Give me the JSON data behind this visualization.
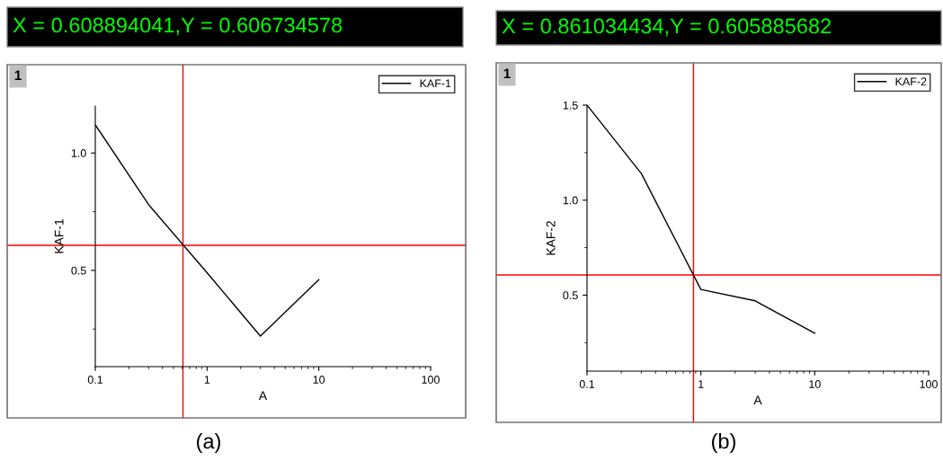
{
  "chart_data": [
    {
      "type": "line",
      "title": "X = 0.608894041,Y = 0.606734578",
      "xlabel": "A",
      "ylabel": "KAF-1",
      "log": "x",
      "x": [
        0.1,
        0.3,
        1,
        3,
        10
      ],
      "series": [
        {
          "name": "KAF-1",
          "color": "#000000",
          "values": [
            1.12,
            0.78,
            0.49,
            0.22,
            0.46
          ]
        }
      ],
      "xlim": [
        0.1,
        100
      ],
      "xticks": [
        0.1,
        1,
        10,
        100
      ],
      "ylim": [
        0.09,
        1.2
      ],
      "yticks": [
        {
          "value": 0.5,
          "label": "0.5"
        },
        {
          "value": 1.0,
          "label": "1.0"
        }
      ],
      "ref_lines": [
        {
          "axis": "x",
          "value": 0.608894041,
          "color": "#ff0000"
        },
        {
          "axis": "y",
          "value": 0.606734578,
          "color": "#ff0000"
        }
      ],
      "annotations": [
        "1",
        "(a)"
      ],
      "legend": "top right",
      "grid": false,
      "marker": "none",
      "line_style": "solid"
    },
    {
      "type": "line",
      "title": "X = 0.861034434,Y = 0.605885682",
      "xlabel": "A",
      "ylabel": "KAF-2",
      "log": "x",
      "x": [
        0.1,
        0.3,
        1,
        3,
        10
      ],
      "series": [
        {
          "name": "KAF-2",
          "color": "#000000",
          "values": [
            1.5,
            1.14,
            0.53,
            0.47,
            0.3
          ]
        }
      ],
      "xlim": [
        0.1,
        100
      ],
      "xticks": [
        0.1,
        1,
        10,
        100
      ],
      "ylim": [
        0.1,
        1.5
      ],
      "yticks": [
        {
          "value": 0.5,
          "label": "0.5"
        },
        {
          "value": 1.0,
          "label": "1.0"
        },
        {
          "value": 1.5,
          "label": "1.5"
        }
      ],
      "ref_lines": [
        {
          "axis": "x",
          "value": 0.861034434,
          "color": "#ff0000"
        },
        {
          "axis": "y",
          "value": 0.605885682,
          "color": "#ff0000"
        }
      ],
      "annotations": [
        "1",
        "(b)"
      ],
      "legend": "top right",
      "grid": false,
      "marker": "none",
      "line_style": "solid"
    }
  ]
}
